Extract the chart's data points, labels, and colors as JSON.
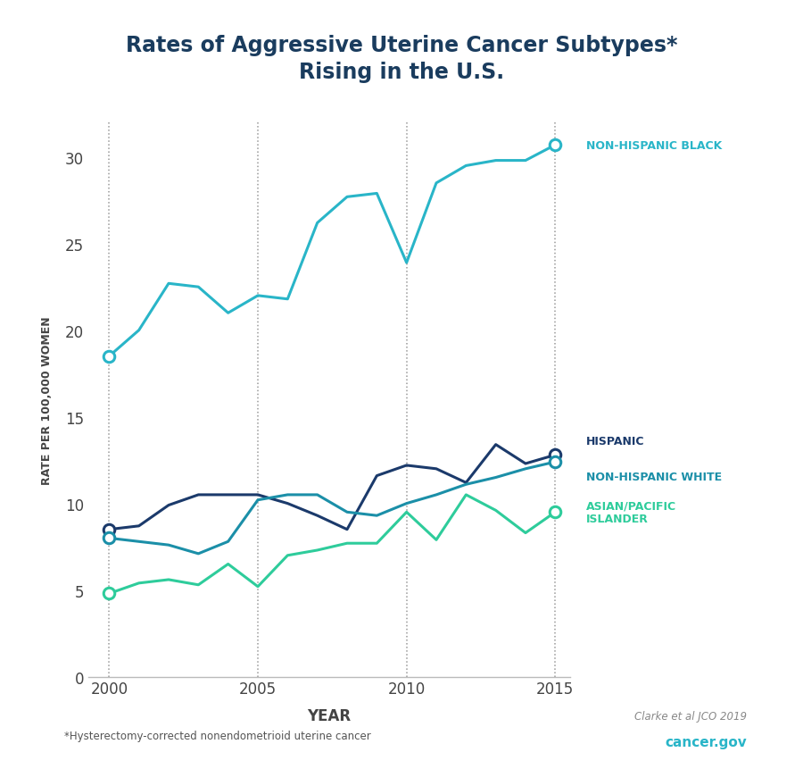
{
  "title_line1": "Rates of Aggressive Uterine Cancer Subtypes*",
  "title_line2": "Rising in the U.S.",
  "xlabel": "YEAR",
  "ylabel": "RATE PER 100,000 WOMEN",
  "years": [
    2000,
    2001,
    2002,
    2003,
    2004,
    2005,
    2006,
    2007,
    2008,
    2009,
    2010,
    2011,
    2012,
    2013,
    2014,
    2015
  ],
  "nh_black": [
    18.5,
    20.0,
    22.7,
    22.5,
    21.0,
    22.0,
    21.8,
    26.2,
    27.7,
    27.9,
    23.9,
    28.5,
    29.5,
    29.8,
    29.8,
    30.7
  ],
  "hispanic": [
    8.5,
    8.7,
    9.9,
    10.5,
    10.5,
    10.5,
    10.0,
    9.3,
    8.5,
    11.6,
    12.2,
    12.0,
    11.2,
    13.4,
    12.3,
    12.8
  ],
  "nh_white": [
    8.0,
    7.8,
    7.6,
    7.1,
    7.8,
    10.2,
    10.5,
    10.5,
    9.5,
    9.3,
    10.0,
    10.5,
    11.1,
    11.5,
    12.0,
    12.4
  ],
  "asian_pi": [
    4.8,
    5.4,
    5.6,
    5.3,
    6.5,
    5.2,
    7.0,
    7.3,
    7.7,
    7.7,
    9.5,
    7.9,
    10.5,
    9.6,
    8.3,
    9.5
  ],
  "color_nh_black": "#29B5C8",
  "color_hispanic": "#1B3A6B",
  "color_nh_white": "#1B8FA8",
  "color_asian_pi": "#2ECC9B",
  "footnote": "*Hysterectomy-corrected nonendometrioid uterine cancer",
  "citation": "Clarke et al JCO 2019",
  "website": "cancer.gov",
  "ylim": [
    0,
    32
  ],
  "yticks": [
    0,
    5,
    10,
    15,
    20,
    25,
    30
  ],
  "vlines": [
    2000,
    2005,
    2010,
    2015
  ],
  "background_color": "#FFFFFF",
  "title_color": "#1A3C5E",
  "label_nhb": "NON-HISPANIC BLACK",
  "label_hisp": "HISPANIC",
  "label_nhw": "NON-HISPANIC WHITE",
  "label_api_line1": "ASIAN/PACIFIC",
  "label_api_line2": "ISLANDER"
}
